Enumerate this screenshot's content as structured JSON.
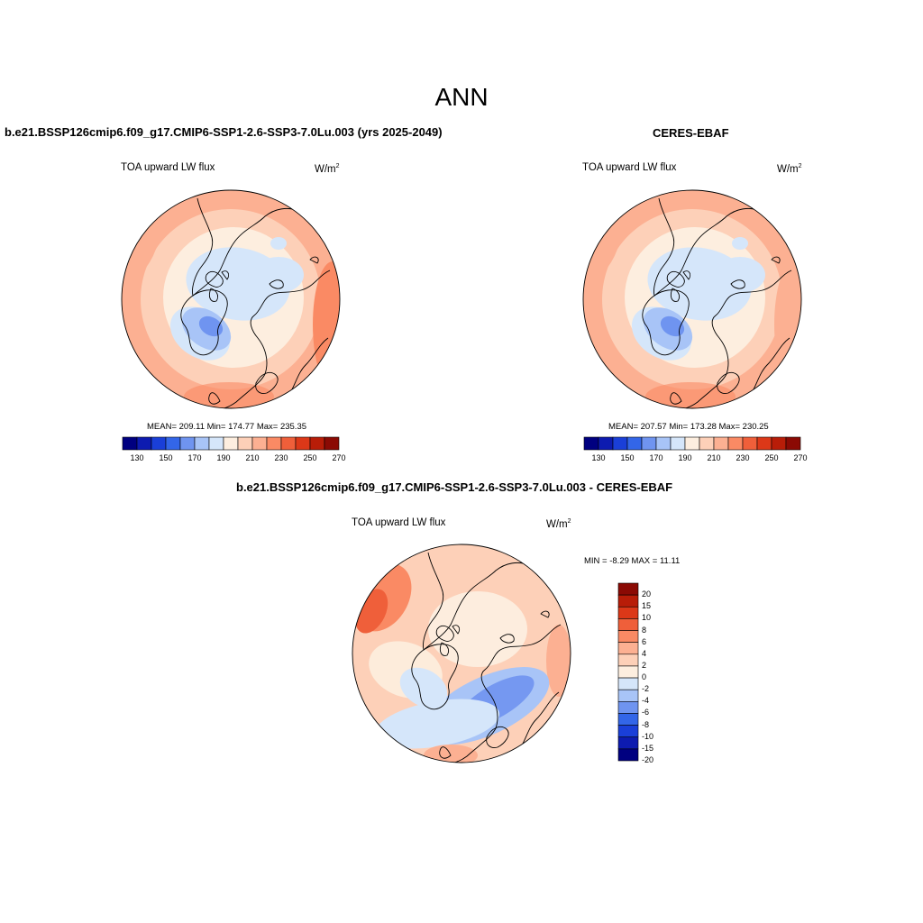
{
  "main_title": "ANN",
  "panels": [
    {
      "title": "b.e21.BSSP126cmip6.f09_g17.CMIP6-SSP1-2.6-SSP3-7.0Lu.003 (yrs 2025-2049)",
      "left_label": "TOA upward LW flux",
      "unit_base": "W/m",
      "unit_sup": "2",
      "stats": "MEAN= 209.11  Min= 174.77  Max= 235.35",
      "colorbar_labels": [
        "130",
        "150",
        "170",
        "190",
        "210",
        "230",
        "250",
        "270"
      ]
    },
    {
      "title": "CERES-EBAF",
      "left_label": "TOA upward LW flux",
      "unit_base": "W/m",
      "unit_sup": "2",
      "stats": "MEAN= 207.57  Min= 173.28  Max= 230.25",
      "colorbar_labels": [
        "130",
        "150",
        "170",
        "190",
        "210",
        "230",
        "250",
        "270"
      ]
    },
    {
      "title": "b.e21.BSSP126cmip6.f09_g17.CMIP6-SSP1-2.6-SSP3-7.0Lu.003 - CERES-EBAF",
      "left_label": "TOA upward LW flux",
      "unit_base": "W/m",
      "unit_sup": "2",
      "stats": "MIN =  -8.29 MAX =  11.11",
      "colorbar_labels": [
        "20",
        "15",
        "10",
        "8",
        "6",
        "4",
        "2",
        "0",
        "-2",
        "-4",
        "-6",
        "-8",
        "-10",
        "-15",
        "-20"
      ]
    }
  ],
  "colors": {
    "abs_scale": [
      "#000080",
      "#0d1bb0",
      "#1a3fd8",
      "#3366e8",
      "#6f94f0",
      "#a8c4f7",
      "#d5e6fa",
      "#fdeedf",
      "#fdd0b8",
      "#fcb092",
      "#fa8a64",
      "#ef5f3a",
      "#dc3818",
      "#b81d08",
      "#8b0a04"
    ],
    "diff_scale": [
      "#8b0a04",
      "#b81d08",
      "#dc3818",
      "#ef5f3a",
      "#fa8a64",
      "#fcb092",
      "#fdd0b8",
      "#fdeedf",
      "#d5e6fa",
      "#a8c4f7",
      "#6f94f0",
      "#3366e8",
      "#1a3fd8",
      "#0d1bb0",
      "#000080"
    ],
    "ocean_bg": "#fdd0b8",
    "arctic": "#d5e6fa",
    "greenland": "#a8c4f7",
    "greenland_core": "#6f94f0"
  }
}
